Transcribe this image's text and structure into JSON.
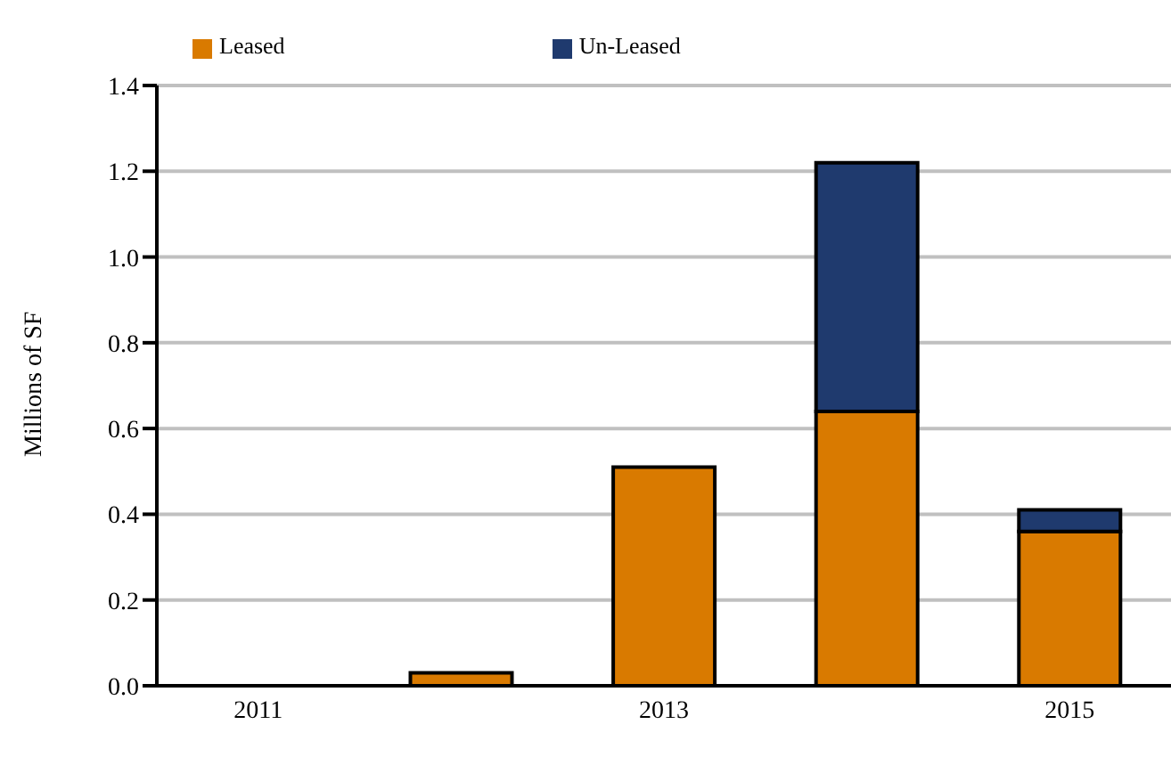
{
  "chart_data": {
    "type": "bar",
    "stacked": true,
    "ylabel": "Millions of SF",
    "categories": [
      "2011",
      null,
      "2013",
      null,
      "2015"
    ],
    "series": [
      {
        "name": "Leased",
        "color": "#d97a00",
        "values": [
          0,
          0.03,
          0.51,
          0.64,
          0.36
        ]
      },
      {
        "name": "Un-Leased",
        "color": "#1f3a6e",
        "values": [
          0,
          0,
          0,
          0.58,
          0.05
        ]
      }
    ],
    "ylim": [
      0,
      1.4
    ],
    "yticks": [
      {
        "value": 0,
        "label": "0.0"
      },
      {
        "value": 0.2,
        "label": "0.2"
      },
      {
        "value": 0.4,
        "label": "0.4"
      },
      {
        "value": 0.6,
        "label": "0.6"
      },
      {
        "value": 0.8,
        "label": "0.8"
      },
      {
        "value": 1,
        "label": "1.0"
      },
      {
        "value": 1.2,
        "label": "1.2"
      },
      {
        "value": 1.4,
        "label": "1.4"
      }
    ],
    "grid": "y",
    "legend": "top left"
  }
}
